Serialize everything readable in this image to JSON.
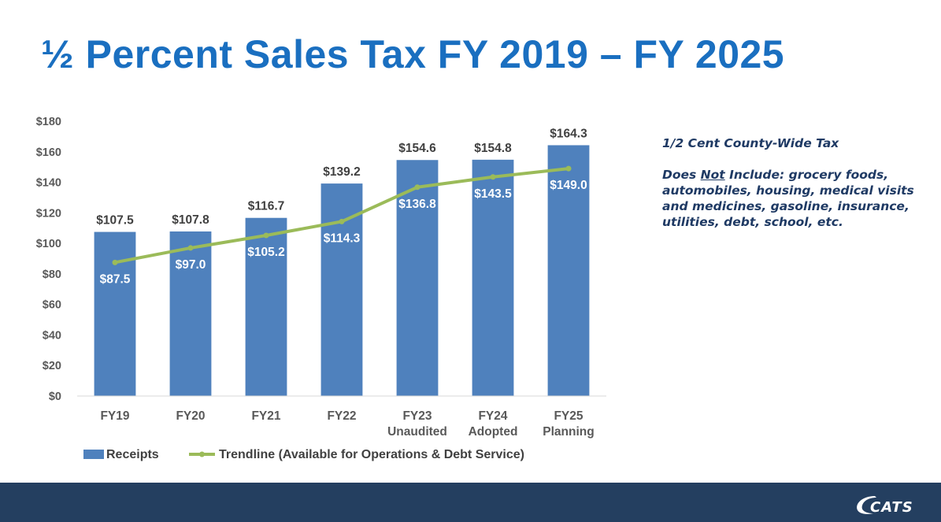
{
  "title": "½ Percent Sales Tax FY 2019 – FY 2025",
  "side_note": {
    "heading": "1/2 Cent County-Wide Tax",
    "body_prefix": "Does ",
    "body_emphasis": "Not",
    "body_rest": " Include: grocery foods, automobiles, housing, medical visits and medicines, gasoline, insurance, utilities, debt, school, etc."
  },
  "logo_text": "CATS",
  "colors": {
    "title": "#1a6fc0",
    "bar": "#4f81bd",
    "trend": "#9bbb59",
    "footer": "#243f60"
  },
  "chart_data": {
    "type": "bar",
    "categories": [
      [
        "FY19"
      ],
      [
        "FY20"
      ],
      [
        "FY21"
      ],
      [
        "FY22"
      ],
      [
        "FY23",
        "Unaudited"
      ],
      [
        "FY24",
        "Adopted"
      ],
      [
        "FY25",
        "Planning"
      ]
    ],
    "series": [
      {
        "name": "Receipts",
        "type": "bar",
        "values": [
          107.5,
          107.8,
          116.7,
          139.2,
          154.6,
          154.8,
          164.3
        ],
        "labels": [
          "$107.5",
          "$107.8",
          "$116.7",
          "$139.2",
          "$154.6",
          "$154.8",
          "$164.3"
        ]
      },
      {
        "name": "Trendline (Available for Operations & Debt Service)",
        "type": "line",
        "values": [
          87.5,
          97.0,
          105.2,
          114.3,
          136.8,
          143.5,
          149.0
        ],
        "labels": [
          "$87.5",
          "$97.0",
          "$105.2",
          "$114.3",
          "$136.8",
          "$143.5",
          "$149.0"
        ]
      }
    ],
    "y_ticks": [
      0,
      20,
      40,
      60,
      80,
      100,
      120,
      140,
      160,
      180
    ],
    "y_tick_labels": [
      "$0",
      "$20",
      "$40",
      "$60",
      "$80",
      "$100",
      "$120",
      "$140",
      "$160",
      "$180"
    ],
    "ylim": [
      0,
      180
    ],
    "grid": false,
    "legend_position": "bottom"
  }
}
